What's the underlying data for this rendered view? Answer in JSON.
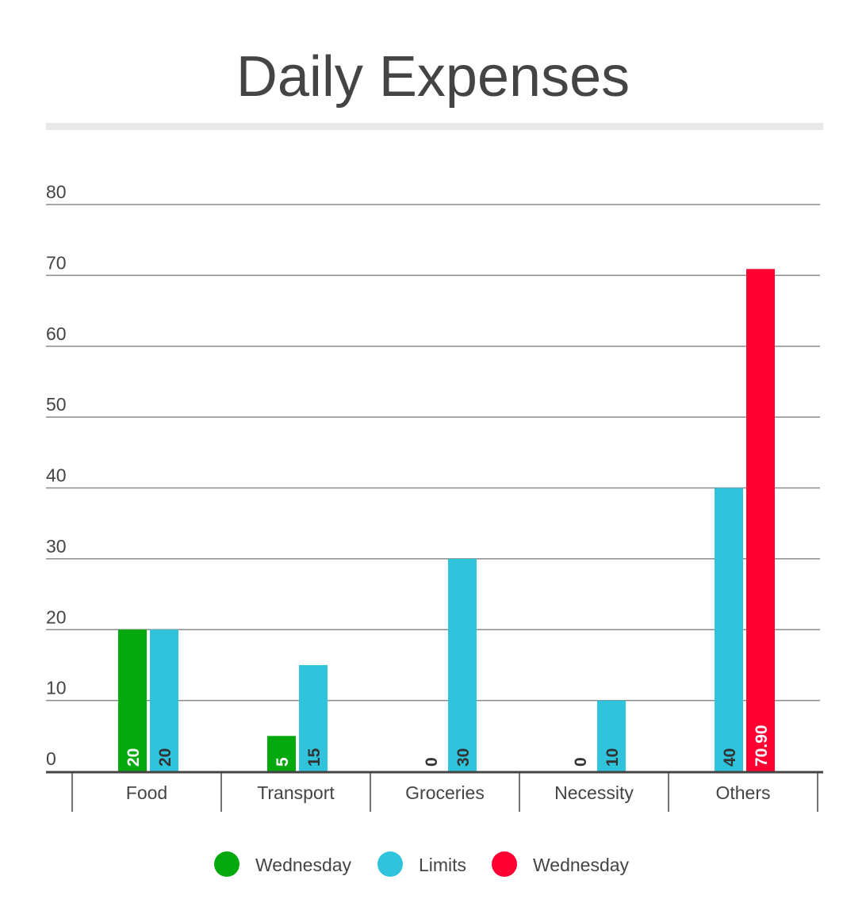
{
  "chart_data": {
    "type": "bar",
    "title": "Daily Expenses",
    "categories": [
      "Food",
      "Transport",
      "Groceries",
      "Necessity",
      "Others"
    ],
    "series": [
      {
        "name": "Wednesday",
        "color": "#05a80d",
        "values": [
          20,
          5,
          0,
          0,
          0
        ],
        "labels": [
          "20",
          "5",
          "0",
          "0",
          ""
        ]
      },
      {
        "name": "Limits",
        "color": "#2fc4dc",
        "values": [
          20,
          15,
          30,
          10,
          40
        ],
        "labels": [
          "20",
          "15",
          "30",
          "10",
          "40"
        ]
      },
      {
        "name": "Wednesday",
        "color": "#ff0033",
        "values": [
          0,
          0,
          0,
          0,
          70.9
        ],
        "labels": [
          "",
          "",
          "",
          "",
          "70.90"
        ]
      }
    ],
    "ylim": [
      0,
      80
    ],
    "yticks": [
      0,
      10,
      20,
      30,
      40,
      50,
      60,
      70,
      80
    ],
    "grid": true,
    "legend_position": "bottom-center"
  }
}
